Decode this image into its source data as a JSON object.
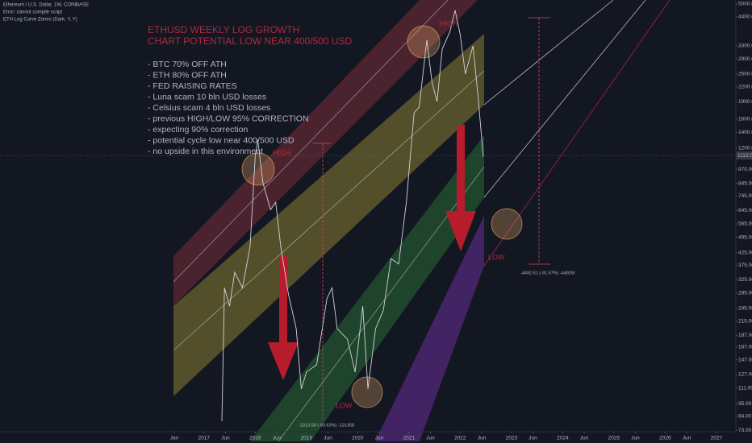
{
  "chart_data": {
    "type": "line",
    "log_scale": true,
    "grid": false,
    "symbol": "Ethereum / U.S. Dollar, 1W, COINBASE",
    "error": "Error: cannot compile script",
    "indicator": "ETH Log Curve Zones (Dark, Y, Y)",
    "title": "ETHUSD WEEKLY LOG GROWTH",
    "subtitle": "CHART POTENTIAL LOW NEAR 400/500 USD",
    "notes": [
      "- BTC 70% OFF ATH",
      "- ETH 80% OFF ATH",
      "- FED RAISING RATES",
      "- Luna scam 10 bln USD losses",
      "- Celsius scam 4 bln USD losses",
      "- previous HIGH/LOW 95% CORRECTION",
      "- expecting 90% correction",
      "- potential cycle low near 400/500 USD",
      "- no upside in this environment"
    ],
    "annotations": [
      "HIGH",
      "HIGH",
      "LOW",
      "LOW",
      "-1313.58 (-93.63%) -131358",
      "-4492.61 (-91.57%) -44926t"
    ],
    "last_price": {
      "value": 1113,
      "label": "1113.00"
    },
    "xlim": [
      2013.02,
      2027.38
    ],
    "ylim": [
      72,
      5200
    ],
    "xticks": [
      {
        "value": 2016.42,
        "label": "Jan"
      },
      2017,
      {
        "value": 2017.42,
        "label": "Jun"
      },
      2018,
      {
        "value": 2018.42,
        "label": "Jun"
      },
      2019,
      {
        "value": 2019.42,
        "label": "Jun"
      },
      2020,
      {
        "value": 2020.42,
        "label": "Jun"
      },
      2021,
      {
        "value": 2021.42,
        "label": "Jun"
      },
      2022,
      {
        "value": 2022.42,
        "label": "Jun"
      },
      2023,
      {
        "value": 2023.42,
        "label": "Jun"
      },
      2024,
      {
        "value": 2024.42,
        "label": "Jun"
      },
      2025,
      {
        "value": 2025.42,
        "label": "Jun"
      },
      2026,
      {
        "value": 2026.42,
        "label": "Jun"
      },
      2027
    ],
    "yticks": [
      {
        "value": 5000,
        "label": "5000.00"
      },
      {
        "value": 4400,
        "label": "4400.00"
      },
      {
        "value": 3300,
        "label": "3300.00"
      },
      {
        "value": 2900,
        "label": "2900.00"
      },
      {
        "value": 2500,
        "label": "2500.00"
      },
      {
        "value": 2200,
        "label": "2200.00"
      },
      {
        "value": 1900,
        "label": "1900.00"
      },
      {
        "value": 1600,
        "label": "1600.00"
      },
      {
        "value": 1400,
        "label": "1400.00"
      },
      {
        "value": 1200,
        "label": "1200.00"
      },
      {
        "value": 970,
        "label": "970.00"
      },
      {
        "value": 845,
        "label": "845.00"
      },
      {
        "value": 745,
        "label": "745.00"
      },
      {
        "value": 645,
        "label": "645.00"
      },
      {
        "value": 565,
        "label": "565.00"
      },
      {
        "value": 495,
        "label": "495.00"
      },
      {
        "value": 425,
        "label": "425.00"
      },
      {
        "value": 375,
        "label": "375.00"
      },
      {
        "value": 325,
        "label": "325.00"
      },
      {
        "value": 285,
        "label": "285.00"
      },
      {
        "value": 245,
        "label": "245.00"
      },
      {
        "value": 215,
        "label": "215.00"
      },
      {
        "value": 187,
        "label": "187.00"
      },
      {
        "value": 167,
        "label": "167.00"
      },
      {
        "value": 147,
        "label": "147.00"
      },
      {
        "value": 127,
        "label": "127.00"
      },
      {
        "value": 111,
        "label": "111.00"
      },
      {
        "value": 95,
        "label": "95.00"
      },
      {
        "value": 84,
        "label": "84.00"
      },
      {
        "value": 73,
        "label": "73.00"
      }
    ],
    "series": [
      {
        "name": "ETHUSD",
        "color": "#d1d4dc",
        "x": [
          2017.35,
          2017.4,
          2017.5,
          2017.6,
          2017.75,
          2017.9,
          2018.0,
          2018.05,
          2018.15,
          2018.3,
          2018.4,
          2018.5,
          2018.65,
          2018.8,
          2018.9,
          2019.0,
          2019.2,
          2019.4,
          2019.5,
          2019.6,
          2019.8,
          2019.95,
          2020.1,
          2020.2,
          2020.35,
          2020.5,
          2020.65,
          2020.8,
          2020.95,
          2021.1,
          2021.2,
          2021.35,
          2021.45,
          2021.55,
          2021.65,
          2021.8,
          2021.9,
          2022.0,
          2022.1,
          2022.25,
          2022.35,
          2022.45
        ],
        "values": [
          80,
          300,
          250,
          350,
          300,
          450,
          1100,
          1300,
          850,
          650,
          700,
          450,
          280,
          200,
          110,
          130,
          140,
          270,
          300,
          200,
          180,
          130,
          250,
          110,
          200,
          240,
          400,
          380,
          700,
          1700,
          1800,
          3500,
          2300,
          1900,
          3200,
          3800,
          4700,
          3700,
          2500,
          3300,
          2000,
          1100
        ]
      }
    ]
  }
}
